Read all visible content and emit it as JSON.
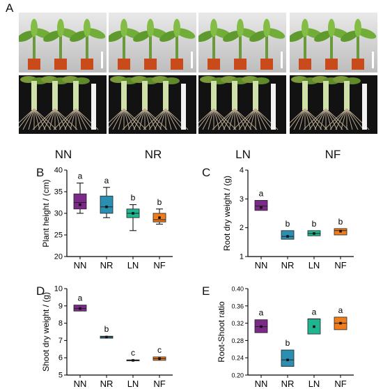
{
  "panel_labels": {
    "a": "A",
    "b": "B",
    "c": "C",
    "d": "D",
    "e": "E"
  },
  "treatments": [
    "NN",
    "NR",
    "LN",
    "NF"
  ],
  "colors": {
    "NN": "#7b2a8a",
    "NR": "#2a8fb0",
    "LN": "#1fb58f",
    "NF": "#f07d1a"
  },
  "photos": {
    "rows": [
      "potted plants",
      "root systems"
    ]
  },
  "chart_data": [
    {
      "id": "B",
      "type": "boxplot",
      "ylabel": "Plant height / (cm)",
      "ylim": [
        20,
        40
      ],
      "yticks": [
        20,
        25,
        30,
        35,
        40
      ],
      "categories": [
        "NN",
        "NR",
        "LN",
        "NF"
      ],
      "boxes": [
        {
          "min": 30,
          "q1": 31,
          "median": 32.5,
          "mean": 32,
          "q3": 34.5,
          "max": 37,
          "letter": "a"
        },
        {
          "min": 29,
          "q1": 30,
          "median": 31.5,
          "mean": 31.5,
          "q3": 34,
          "max": 36,
          "letter": "a"
        },
        {
          "min": 26,
          "q1": 29,
          "median": 30,
          "mean": 30,
          "q3": 31,
          "max": 32,
          "letter": "b"
        },
        {
          "min": 27.5,
          "q1": 28,
          "median": 28.5,
          "mean": 29,
          "q3": 30,
          "max": 31,
          "letter": "b"
        }
      ]
    },
    {
      "id": "C",
      "type": "boxplot",
      "ylabel": "Root dry weight / (g)",
      "ylim": [
        1,
        4
      ],
      "yticks": [
        1,
        2,
        3,
        4
      ],
      "categories": [
        "NN",
        "NR",
        "LN",
        "NF"
      ],
      "boxes": [
        {
          "min": 2.6,
          "q1": 2.6,
          "median": 2.75,
          "mean": 2.7,
          "q3": 2.95,
          "max": 2.95,
          "letter": "a"
        },
        {
          "min": 1.6,
          "q1": 1.6,
          "median": 1.7,
          "mean": 1.7,
          "q3": 1.9,
          "max": 1.9,
          "letter": "b"
        },
        {
          "min": 1.72,
          "q1": 1.72,
          "median": 1.8,
          "mean": 1.8,
          "q3": 1.9,
          "max": 1.9,
          "letter": "b"
        },
        {
          "min": 1.75,
          "q1": 1.75,
          "median": 1.9,
          "mean": 1.88,
          "q3": 1.97,
          "max": 1.97,
          "letter": "b"
        }
      ]
    },
    {
      "id": "D",
      "type": "boxplot",
      "ylabel": "Shoot dry weight / (g)",
      "ylim": [
        5,
        10
      ],
      "yticks": [
        5,
        6,
        7,
        8,
        9,
        10
      ],
      "categories": [
        "NN",
        "NR",
        "LN",
        "NF"
      ],
      "boxes": [
        {
          "min": 8.7,
          "q1": 8.7,
          "median": 8.85,
          "mean": 8.85,
          "q3": 9.05,
          "max": 9.05,
          "letter": "a"
        },
        {
          "min": 7.13,
          "q1": 7.13,
          "median": 7.2,
          "mean": 7.2,
          "q3": 7.25,
          "max": 7.25,
          "letter": "b"
        },
        {
          "min": 5.82,
          "q1": 5.82,
          "median": 5.85,
          "mean": 5.85,
          "q3": 5.88,
          "max": 5.88,
          "letter": "c"
        },
        {
          "min": 5.85,
          "q1": 5.85,
          "median": 5.95,
          "mean": 5.95,
          "q3": 6.05,
          "max": 6.05,
          "letter": "c"
        }
      ]
    },
    {
      "id": "E",
      "type": "boxplot",
      "ylabel": "Root-Shoot ratio",
      "ylim": [
        0.2,
        0.4
      ],
      "yticks": [
        0.2,
        0.24,
        0.28,
        0.32,
        0.36,
        0.4
      ],
      "ytick_labels": [
        "0.20",
        "0.24",
        "0.28",
        "0.32",
        "0.36",
        "0.40"
      ],
      "categories": [
        "NN",
        "NR",
        "LN",
        "NF"
      ],
      "boxes": [
        {
          "min": 0.298,
          "q1": 0.298,
          "median": 0.312,
          "mean": 0.312,
          "q3": 0.328,
          "max": 0.328,
          "letter": "a"
        },
        {
          "min": 0.22,
          "q1": 0.22,
          "median": 0.235,
          "mean": 0.235,
          "q3": 0.258,
          "max": 0.258,
          "letter": "b"
        },
        {
          "min": 0.295,
          "q1": 0.295,
          "median": 0.33,
          "mean": 0.312,
          "q3": 0.33,
          "max": 0.33,
          "letter": "a"
        },
        {
          "min": 0.305,
          "q1": 0.305,
          "median": 0.32,
          "mean": 0.32,
          "q3": 0.334,
          "max": 0.334,
          "letter": "a"
        }
      ]
    }
  ]
}
